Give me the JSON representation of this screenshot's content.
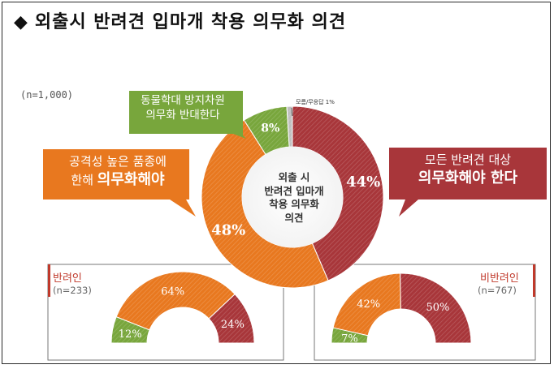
{
  "title": "외출시 반려견 입마개 착용 의무화 의견",
  "title_marker": "◆",
  "sample_size": "(n=1,000)",
  "center_label": [
    "외출 시",
    "반려견 입마개",
    "착용 의무화",
    "의견"
  ],
  "callouts": {
    "green": [
      "동물학대 방지차원",
      "의무화 반대한다"
    ],
    "orange": [
      "공격성 높은 품종에",
      "한해",
      "의무화해야"
    ],
    "red": [
      "모든 반려견 대상",
      "의무화해야 한다"
    ]
  },
  "small_slice_label": "모름/무응답 1%",
  "colors": {
    "red": "#a8363a",
    "orange": "#e8781f",
    "green": "#78a63c",
    "gray": "#bfbfbf",
    "text_red": "#c0392b"
  },
  "chart_data": [
    {
      "type": "pie",
      "title": "외출시 반려견 입마개 착용 의무화 의견",
      "slices": [
        {
          "label": "모든 반려견 대상 의무화해야 한다",
          "value": 44,
          "display": "44%",
          "color": "#a8363a"
        },
        {
          "label": "공격성 높은 품종에 한해 의무화해야",
          "value": 48,
          "display": "48%",
          "color": "#e8781f"
        },
        {
          "label": "동물학대 방지차원 의무화 반대한다",
          "value": 8,
          "display": "8%",
          "color": "#78a63c"
        },
        {
          "label": "모름/무응답",
          "value": 1,
          "display": "1%",
          "color": "#bfbfbf"
        }
      ]
    },
    {
      "type": "pie",
      "title": "반려인",
      "n_label": "(n=233)",
      "slices": [
        {
          "value": 12,
          "display": "12%",
          "color": "#78a63c"
        },
        {
          "value": 64,
          "display": "64%",
          "color": "#e8781f"
        },
        {
          "value": 24,
          "display": "24%",
          "color": "#a8363a"
        }
      ]
    },
    {
      "type": "pie",
      "title": "비반려인",
      "n_label": "(n=767)",
      "slices": [
        {
          "value": 7,
          "display": "7%",
          "color": "#78a63c"
        },
        {
          "value": 42,
          "display": "42%",
          "color": "#e8781f"
        },
        {
          "value": 50,
          "display": "50%",
          "color": "#a8363a"
        }
      ]
    }
  ]
}
